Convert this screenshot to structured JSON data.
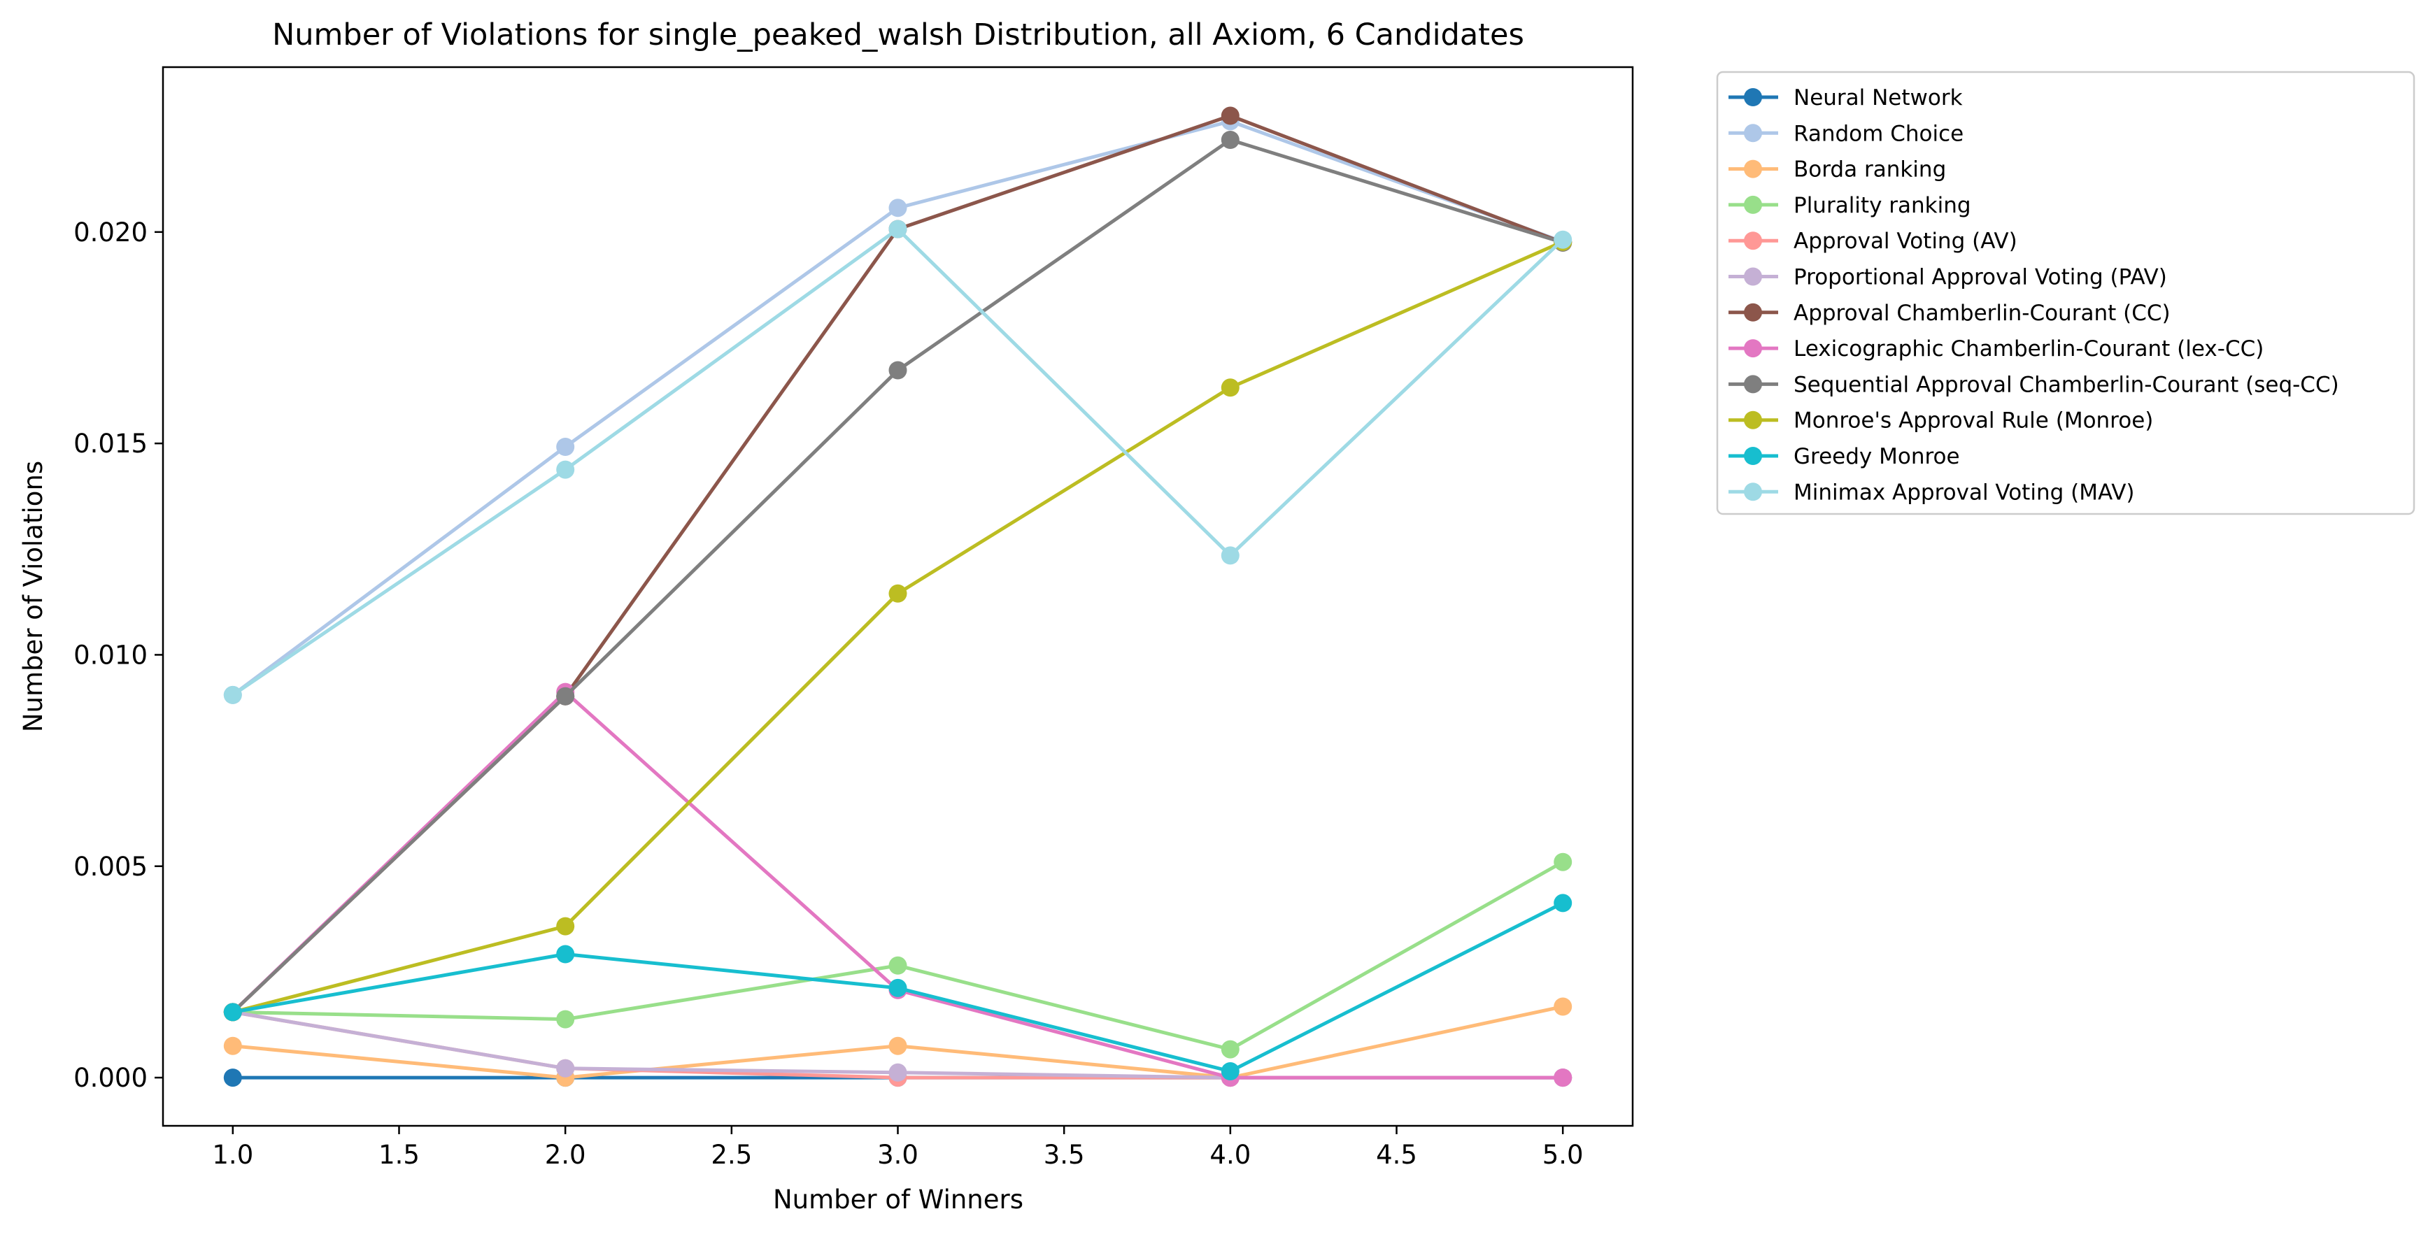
{
  "chart_data": {
    "type": "line",
    "title": "Number of Violations for single_peaked_walsh Distribution, all Axiom, 6 Candidates",
    "xlabel": "Number of Winners",
    "ylabel": "Number of Violations",
    "x": [
      1.0,
      2.0,
      3.0,
      4.0,
      5.0
    ],
    "xlim": [
      0.79,
      5.21
    ],
    "ylim": [
      -0.00114,
      0.0239
    ],
    "xticks": [
      1.0,
      1.5,
      2.0,
      2.5,
      3.0,
      3.5,
      4.0,
      4.5,
      5.0
    ],
    "xtick_labels": [
      "1.0",
      "1.5",
      "2.0",
      "2.5",
      "3.0",
      "3.5",
      "4.0",
      "4.5",
      "5.0"
    ],
    "yticks": [
      0.0,
      0.005,
      0.01,
      0.015,
      0.02
    ],
    "ytick_labels": [
      "0.000",
      "0.005",
      "0.010",
      "0.015",
      "0.020"
    ],
    "grid": false,
    "legend_placement": "outside-upper-right",
    "series": [
      {
        "name": "Neural Network",
        "color": "#1f77b4",
        "values": [
          0.0,
          0.0,
          0.0,
          0.0,
          0.0
        ]
      },
      {
        "name": "Random Choice",
        "color": "#aec7e8",
        "values": [
          0.00905,
          0.01492,
          0.02057,
          0.02262,
          0.01977
        ]
      },
      {
        "name": "Borda ranking",
        "color": "#ffbb78",
        "values": [
          0.00075,
          0.0,
          0.00075,
          0.0,
          0.00168
        ]
      },
      {
        "name": "Plurality ranking",
        "color": "#98df8a",
        "values": [
          0.00155,
          0.00138,
          0.00265,
          0.00067,
          0.0051
        ]
      },
      {
        "name": "Approval Voting (AV)",
        "color": "#ff9896",
        "values": [
          0.00155,
          0.00022,
          0.0,
          0.0,
          0.0
        ]
      },
      {
        "name": "Proportional Approval Voting (PAV)",
        "color": "#c5b0d5",
        "values": [
          0.00155,
          0.00022,
          0.00012,
          0.0,
          0.0
        ]
      },
      {
        "name": "Approval Chamberlin-Courant (CC)",
        "color": "#8c564b",
        "values": [
          0.00155,
          0.00902,
          0.02007,
          0.02275,
          0.01975
        ]
      },
      {
        "name": "Lexicographic Chamberlin-Courant (lex-CC)",
        "color": "#e377c2",
        "values": [
          0.00155,
          0.00912,
          0.00207,
          0.0,
          0.0
        ]
      },
      {
        "name": "Sequential Approval Chamberlin-Courant (seq-CC)",
        "color": "#7f7f7f",
        "values": [
          0.00155,
          0.00902,
          0.01673,
          0.02218,
          0.01975
        ]
      },
      {
        "name": "Monroe's Approval Rule (Monroe)",
        "color": "#bcbd22",
        "values": [
          0.00155,
          0.00358,
          0.01145,
          0.01632,
          0.01977
        ]
      },
      {
        "name": "Greedy Monroe",
        "color": "#17becf",
        "values": [
          0.00155,
          0.00292,
          0.00212,
          0.00015,
          0.00413
        ]
      },
      {
        "name": "Minimax Approval Voting (MAV)",
        "color": "#9edae5",
        "values": [
          0.00905,
          0.01438,
          0.02007,
          0.01235,
          0.01982
        ]
      }
    ]
  }
}
